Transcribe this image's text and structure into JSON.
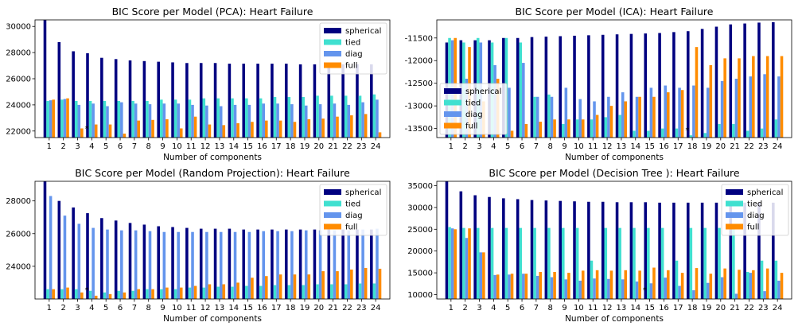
{
  "legend_colors": {
    "spherical": "#000080",
    "tied": "#40e0d0",
    "diag": "#6495ed",
    "full": "#ff8c00"
  },
  "chart_data": [
    {
      "type": "bar",
      "title": "BIC Score per Model (PCA): Heart Failure",
      "xlabel": "Number of components",
      "ylabel": "",
      "ylim": [
        21500,
        30500
      ],
      "yticks": [
        22000,
        24000,
        26000,
        28000,
        30000
      ],
      "legend_position": "top-right",
      "categories": [
        "1",
        "2",
        "3",
        "4",
        "5",
        "6",
        "7",
        "8",
        "9",
        "10",
        "11",
        "12",
        "13",
        "14",
        "15",
        "16",
        "17",
        "18",
        "19",
        "20",
        "21",
        "22",
        "23",
        "24"
      ],
      "marker": {
        "symbol": "*",
        "category": "4"
      },
      "series": [
        {
          "name": "spherical",
          "values": [
            30500,
            28800,
            28100,
            27950,
            27600,
            27500,
            27400,
            27350,
            27300,
            27250,
            27200,
            27200,
            27200,
            27150,
            27150,
            27150,
            27150,
            27150,
            27100,
            27100,
            27100,
            27100,
            27100,
            27100
          ]
        },
        {
          "name": "tied",
          "values": [
            24300,
            24400,
            24300,
            24300,
            24300,
            24300,
            24300,
            24300,
            24400,
            24400,
            24400,
            24500,
            24500,
            24500,
            24500,
            24500,
            24600,
            24600,
            24600,
            24700,
            24700,
            24700,
            24700,
            24800
          ]
        },
        {
          "name": "diag",
          "values": [
            24350,
            24450,
            24000,
            24100,
            23900,
            24200,
            24100,
            24050,
            24100,
            24100,
            24000,
            23950,
            23900,
            24000,
            24000,
            24100,
            24100,
            24050,
            23950,
            24050,
            24100,
            24000,
            24200,
            24400
          ]
        },
        {
          "name": "full",
          "values": [
            24400,
            24500,
            22200,
            22500,
            22500,
            21800,
            22800,
            22850,
            22900,
            22200,
            23100,
            22500,
            22450,
            22600,
            22700,
            22800,
            22800,
            22700,
            22900,
            22950,
            23100,
            23200,
            23300,
            21900
          ]
        }
      ]
    },
    {
      "type": "bar",
      "title": "BIC Score per Model (ICA): Heart Failure",
      "xlabel": "Number of components",
      "ylabel": "",
      "ylim": [
        -13700,
        -11100
      ],
      "yticks": [
        -13500,
        -13000,
        -12500,
        -12000,
        -11500
      ],
      "legend_position": "top-left",
      "categories": [
        "1",
        "2",
        "3",
        "4",
        "5",
        "6",
        "7",
        "8",
        "9",
        "10",
        "11",
        "12",
        "13",
        "14",
        "15",
        "16",
        "17",
        "18",
        "19",
        "20",
        "21",
        "22",
        "23",
        "24"
      ],
      "marker": {
        "symbol": "*",
        "category": "18"
      },
      "series": [
        {
          "name": "spherical",
          "values": [
            -11600,
            -11550,
            -11550,
            -11550,
            -11500,
            -11500,
            -11480,
            -11470,
            -11460,
            -11450,
            -11440,
            -11430,
            -11420,
            -11410,
            -11400,
            -11390,
            -11370,
            -11350,
            -11300,
            -11250,
            -11200,
            -11180,
            -11160,
            -11150
          ]
        },
        {
          "name": "tied",
          "values": [
            -11500,
            -11600,
            -11500,
            -11600,
            -11500,
            -11600,
            -12800,
            -12750,
            -13400,
            -13300,
            -13300,
            -13250,
            -13200,
            -13550,
            -13550,
            -13500,
            -13500,
            -13650,
            -13600,
            -13400,
            -13400,
            -13550,
            -13500,
            -13300
          ]
        },
        {
          "name": "diag",
          "values": [
            -11550,
            -12400,
            -11600,
            -12100,
            -12600,
            -12050,
            -12800,
            -12800,
            -12600,
            -12850,
            -12900,
            -12800,
            -12700,
            -12800,
            -12600,
            -12550,
            -12600,
            -12550,
            -12600,
            -12450,
            -12400,
            -12350,
            -12300,
            -12350
          ]
        },
        {
          "name": "full",
          "values": [
            -11500,
            -11700,
            -12900,
            -12400,
            -13550,
            -13400,
            -13350,
            -13300,
            -13300,
            -13300,
            -13200,
            -13000,
            -12900,
            -12800,
            -12800,
            -12700,
            -12650,
            -11700,
            -12100,
            -11950,
            -11950,
            -11900,
            -11900,
            -11900
          ]
        }
      ]
    },
    {
      "type": "bar",
      "title": "BIC Score per Model (Random Projection): Heart Failure",
      "xlabel": "Number of components",
      "ylabel": "",
      "ylim": [
        22000,
        29200
      ],
      "yticks": [
        24000,
        26000,
        28000
      ],
      "legend_position": "top-right",
      "categories": [
        "1",
        "2",
        "3",
        "4",
        "5",
        "6",
        "7",
        "8",
        "9",
        "10",
        "11",
        "12",
        "13",
        "14",
        "15",
        "16",
        "17",
        "18",
        "19",
        "20",
        "21",
        "22",
        "23",
        "24"
      ],
      "marker": {
        "symbol": "*",
        "category": "4"
      },
      "series": [
        {
          "name": "spherical",
          "values": [
            29200,
            28000,
            27600,
            27250,
            26950,
            26800,
            26650,
            26550,
            26450,
            26400,
            26350,
            26300,
            26300,
            26300,
            26250,
            26250,
            26250,
            26250,
            26250,
            26250,
            26250,
            26250,
            26250,
            26250
          ]
        },
        {
          "name": "tied",
          "values": [
            22600,
            22600,
            22600,
            22500,
            22400,
            22500,
            22500,
            22600,
            22600,
            22600,
            22700,
            22700,
            22750,
            22750,
            22800,
            22800,
            22850,
            22850,
            22850,
            22900,
            22900,
            22900,
            22950,
            22950
          ]
        },
        {
          "name": "diag",
          "values": [
            28300,
            27100,
            26600,
            26350,
            26250,
            26200,
            26200,
            26150,
            26100,
            26100,
            26100,
            26100,
            26100,
            26100,
            26100,
            26150,
            26150,
            26150,
            26200,
            26200,
            26200,
            26200,
            26250,
            26300
          ]
        },
        {
          "name": "full",
          "values": [
            22600,
            22700,
            22400,
            22200,
            22300,
            22400,
            22600,
            22600,
            22700,
            22700,
            22800,
            22900,
            22900,
            23000,
            23300,
            23400,
            23500,
            23500,
            23500,
            23700,
            23700,
            23800,
            23900,
            23850
          ]
        }
      ]
    },
    {
      "type": "bar",
      "title": "BIC Score per Model (Decision Tree ): Heart Failure",
      "xlabel": "Number of components",
      "ylabel": "",
      "ylim": [
        9000,
        36000
      ],
      "yticks": [
        10000,
        15000,
        20000,
        25000,
        30000,
        35000
      ],
      "legend_position": "top-right",
      "categories": [
        "1",
        "2",
        "3",
        "4",
        "5",
        "6",
        "7",
        "8",
        "9",
        "10",
        "11",
        "12",
        "13",
        "14",
        "15",
        "16",
        "17",
        "18",
        "19",
        "20",
        "21",
        "22",
        "23",
        "24"
      ],
      "marker": {
        "symbol": "*",
        "category": "15"
      },
      "series": [
        {
          "name": "spherical",
          "values": [
            36000,
            33700,
            32800,
            32400,
            32100,
            31900,
            31700,
            31600,
            31500,
            31400,
            31300,
            31300,
            31200,
            31200,
            31200,
            31100,
            31100,
            31100,
            31100,
            31100,
            31100,
            31100,
            31100,
            31100
          ]
        },
        {
          "name": "tied",
          "values": [
            25500,
            25300,
            25300,
            25300,
            25300,
            25300,
            25300,
            25300,
            25300,
            25300,
            17800,
            25300,
            25300,
            25300,
            25300,
            25300,
            17800,
            25300,
            25300,
            25300,
            25300,
            15200,
            17800,
            17800
          ]
        },
        {
          "name": "diag",
          "values": [
            25200,
            23000,
            19700,
            14500,
            14600,
            14800,
            14300,
            14000,
            13500,
            13200,
            13700,
            13600,
            13500,
            13000,
            12600,
            13900,
            12000,
            11000,
            12700,
            14000,
            10200,
            15000,
            10800,
            13200
          ]
        },
        {
          "name": "full",
          "values": [
            25000,
            25200,
            19700,
            14600,
            14800,
            14800,
            15200,
            15200,
            15000,
            15500,
            15600,
            15500,
            15600,
            15500,
            16200,
            15600,
            15000,
            16100,
            14800,
            16000,
            15700,
            15600,
            16000,
            15000
          ]
        }
      ]
    }
  ]
}
